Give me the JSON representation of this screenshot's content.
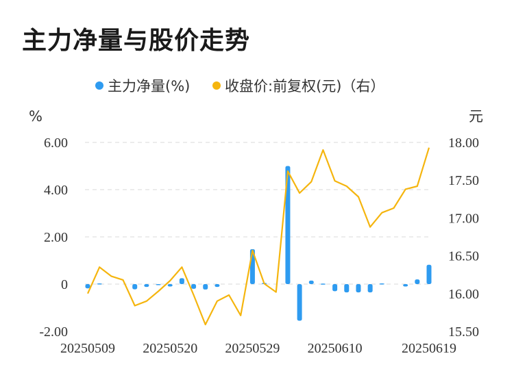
{
  "title": "主力净量与股价走势",
  "legend": {
    "series1": "主力净量(%)",
    "series2": "收盘价:前复权(元)（右）"
  },
  "units": {
    "left": "%",
    "right": "元"
  },
  "colors": {
    "bar": "#2e9bf0",
    "line": "#f5b50e",
    "grid": "#e6e6e6"
  },
  "chart_data": {
    "type": "bar+line",
    "x_tick_labels": [
      "20250509",
      "20250520",
      "20250529",
      "20250610",
      "20250619"
    ],
    "left_axis": {
      "ticks": [
        "-2.00",
        "0",
        "2.00",
        "4.00",
        "6.00"
      ],
      "ylim": [
        -2,
        6
      ]
    },
    "right_axis": {
      "ticks": [
        "15.50",
        "16.00",
        "16.50",
        "17.00",
        "17.50",
        "18.00"
      ],
      "ylim": [
        15.5,
        18
      ]
    },
    "series": [
      {
        "name": "主力净量(%)",
        "type": "bar",
        "values": [
          -0.18,
          0.03,
          0,
          0,
          -0.22,
          -0.12,
          -0.03,
          -0.1,
          0.25,
          -0.2,
          -0.23,
          -0.12,
          0,
          0,
          1.48,
          0.05,
          0,
          5.0,
          -1.55,
          0.15,
          0.02,
          -0.3,
          -0.35,
          -0.35,
          -0.35,
          0.03,
          0,
          -0.1,
          0.2,
          0.82
        ]
      },
      {
        "name": "收盘价:前复权(元)（右）",
        "type": "line",
        "values": [
          16.0,
          16.35,
          16.23,
          16.18,
          15.84,
          15.9,
          16.03,
          16.17,
          16.35,
          15.98,
          15.59,
          15.9,
          15.98,
          15.71,
          16.57,
          16.13,
          16.02,
          17.62,
          17.33,
          17.48,
          17.9,
          17.49,
          17.42,
          17.28,
          16.88,
          17.07,
          17.13,
          17.38,
          17.42,
          17.93
        ]
      }
    ]
  }
}
